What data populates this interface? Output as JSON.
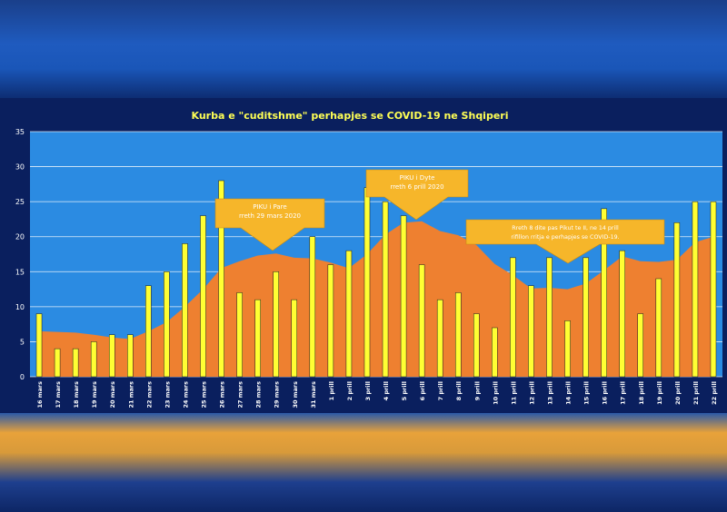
{
  "chart_data": {
    "type": "bar",
    "title": "Kurba e \"cuditshme\" perhapjes se COVID-19 ne Shqiperi",
    "categories": [
      "16 mars",
      "17 mars",
      "18 mars",
      "19 mars",
      "20 mars",
      "21 mars",
      "22 mars",
      "23 mars",
      "24 mars",
      "25 mars",
      "26 mars",
      "27 mars",
      "28 mars",
      "29 mars",
      "30 mars",
      "31 mars",
      "1 prill",
      "2 prill",
      "3 prill",
      "4 prill",
      "5 prill",
      "6 prill",
      "7 prill",
      "8 prill",
      "9 prill",
      "10 prill",
      "11 prill",
      "12 prill",
      "13 prill",
      "14 prill",
      "15 prill",
      "16 prill",
      "17 prill",
      "18 prill",
      "19 prill",
      "20 prill",
      "21 prill",
      "22 prill"
    ],
    "ylim": [
      0,
      35
    ],
    "yticks": [
      0,
      5,
      10,
      15,
      20,
      25,
      30,
      35
    ],
    "grid": true,
    "series": [
      {
        "values": [
          9,
          4,
          4,
          5,
          6,
          6,
          13,
          15,
          19,
          23,
          28,
          12,
          11,
          15,
          11,
          20,
          16,
          18,
          27,
          25,
          23,
          16,
          11,
          12,
          9,
          7,
          17,
          13,
          17,
          8,
          17,
          24,
          18,
          9,
          14,
          22,
          25,
          25
        ],
        "color": "#ffff33"
      },
      {
        "values": [
          6.5,
          6.4,
          6.3,
          6.0,
          5.6,
          5.4,
          6.5,
          7.8,
          10.0,
          12.5,
          15.5,
          16.5,
          17.3,
          17.6,
          17.0,
          16.9,
          16.3,
          15.5,
          17.5,
          20.3,
          22.0,
          22.2,
          20.8,
          20.2,
          18.8,
          16.1,
          14.5,
          12.6,
          12.7,
          12.5,
          13.3,
          15.2,
          17.2,
          16.5,
          16.4,
          16.7,
          19.2,
          20.0
        ],
        "color": "#ee8030"
      }
    ],
    "annotations": [
      {
        "lines": [
          "PIKU i Pare",
          "rreth 29 mars 2020"
        ]
      },
      {
        "lines": [
          "PIKU i Dyte",
          "rreth 6 prill 2020"
        ]
      },
      {
        "lines": [
          "Rreth 8 dite pas Pikut te II, ne 14 prill",
          "rifillon rritja e perhapjes se COVID-19."
        ]
      }
    ],
    "colors": {
      "plot_bg": "#2b8be2",
      "frame_bg": "#0a1f5e",
      "title": "#ffff55",
      "axis_text": "#ffffff",
      "callout": "#f6b62a",
      "gridline": "#ffffff"
    }
  }
}
